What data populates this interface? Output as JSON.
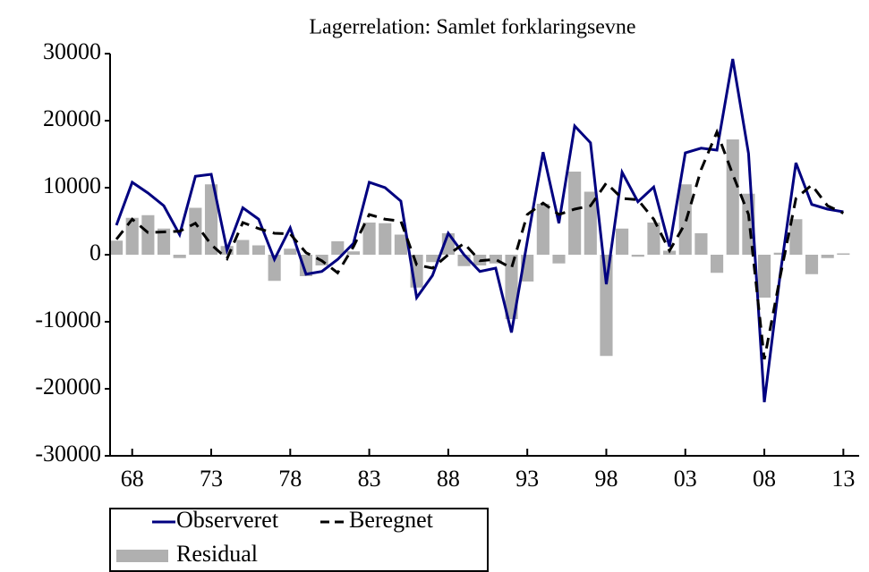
{
  "chart_data": {
    "type": "line-bar",
    "title": "Lagerrelation: Samlet forklaringsevne",
    "x": [
      1967,
      1968,
      1969,
      1970,
      1971,
      1972,
      1973,
      1974,
      1975,
      1976,
      1977,
      1978,
      1979,
      1980,
      1981,
      1982,
      1983,
      1984,
      1985,
      1986,
      1987,
      1988,
      1989,
      1990,
      1991,
      1992,
      1993,
      1994,
      1995,
      1996,
      1997,
      1998,
      1999,
      2000,
      2001,
      2002,
      2003,
      2004,
      2005,
      2006,
      2007,
      2008,
      2009,
      2010,
      2011,
      2012,
      2013
    ],
    "series": [
      {
        "name": "Observeret",
        "color": "#000080",
        "kind": "line",
        "dashed": false,
        "values": [
          4400,
          10800,
          9200,
          7300,
          3000,
          11700,
          12000,
          700,
          7000,
          5300,
          -700,
          4000,
          -2900,
          -2500,
          -700,
          1700,
          10800,
          10000,
          8000,
          -6400,
          -3100,
          3200,
          0,
          -2500,
          -2000,
          -11600,
          2000,
          15300,
          4700,
          19200,
          16700,
          -4400,
          12300,
          7900,
          10100,
          1200,
          15200,
          15900,
          15600,
          29200,
          15100,
          -22000,
          -3000,
          13700,
          7500,
          6800,
          6400
        ]
      },
      {
        "name": "Beregnet",
        "color": "#000000",
        "kind": "line",
        "dashed": true,
        "values": [
          2300,
          5300,
          3300,
          3400,
          3500,
          4700,
          1500,
          -600,
          4800,
          3900,
          3200,
          3100,
          300,
          -900,
          -2700,
          1200,
          6000,
          5300,
          5000,
          -1500,
          -2000,
          0,
          1700,
          -900,
          -700,
          -2000,
          6000,
          7700,
          6000,
          6800,
          7300,
          10700,
          8400,
          8200,
          5300,
          600,
          4700,
          12700,
          18300,
          12000,
          6000,
          -15600,
          -3300,
          8400,
          10400,
          7300,
          6200
        ]
      },
      {
        "name": "Residual",
        "color": "#b0b0b0",
        "kind": "bar",
        "dashed": false,
        "values": [
          2100,
          5500,
          5900,
          3900,
          -500,
          7000,
          10500,
          1300,
          2200,
          1400,
          -3900,
          900,
          -3200,
          -1600,
          2000,
          500,
          4800,
          4700,
          3000,
          -4900,
          -1100,
          3200,
          -1700,
          -1600,
          -1300,
          -9600,
          -4000,
          7600,
          -1300,
          12400,
          9400,
          -15100,
          3900,
          -300,
          4800,
          600,
          10500,
          3200,
          -2700,
          17200,
          9100,
          -6400,
          300,
          5300,
          -2900,
          -500,
          200
        ]
      }
    ],
    "xlim": [
      1966.6,
      2014
    ],
    "xticks": [
      {
        "value": 1968,
        "label": "68"
      },
      {
        "value": 1973,
        "label": "73"
      },
      {
        "value": 1978,
        "label": "78"
      },
      {
        "value": 1983,
        "label": "83"
      },
      {
        "value": 1988,
        "label": "88"
      },
      {
        "value": 1993,
        "label": "93"
      },
      {
        "value": 1998,
        "label": "98"
      },
      {
        "value": 2003,
        "label": "03"
      },
      {
        "value": 2008,
        "label": "08"
      },
      {
        "value": 2013,
        "label": "13"
      }
    ],
    "ylim": [
      -30000,
      30000
    ],
    "yticks": [
      -30000,
      -20000,
      -10000,
      0,
      10000,
      20000,
      30000
    ]
  }
}
